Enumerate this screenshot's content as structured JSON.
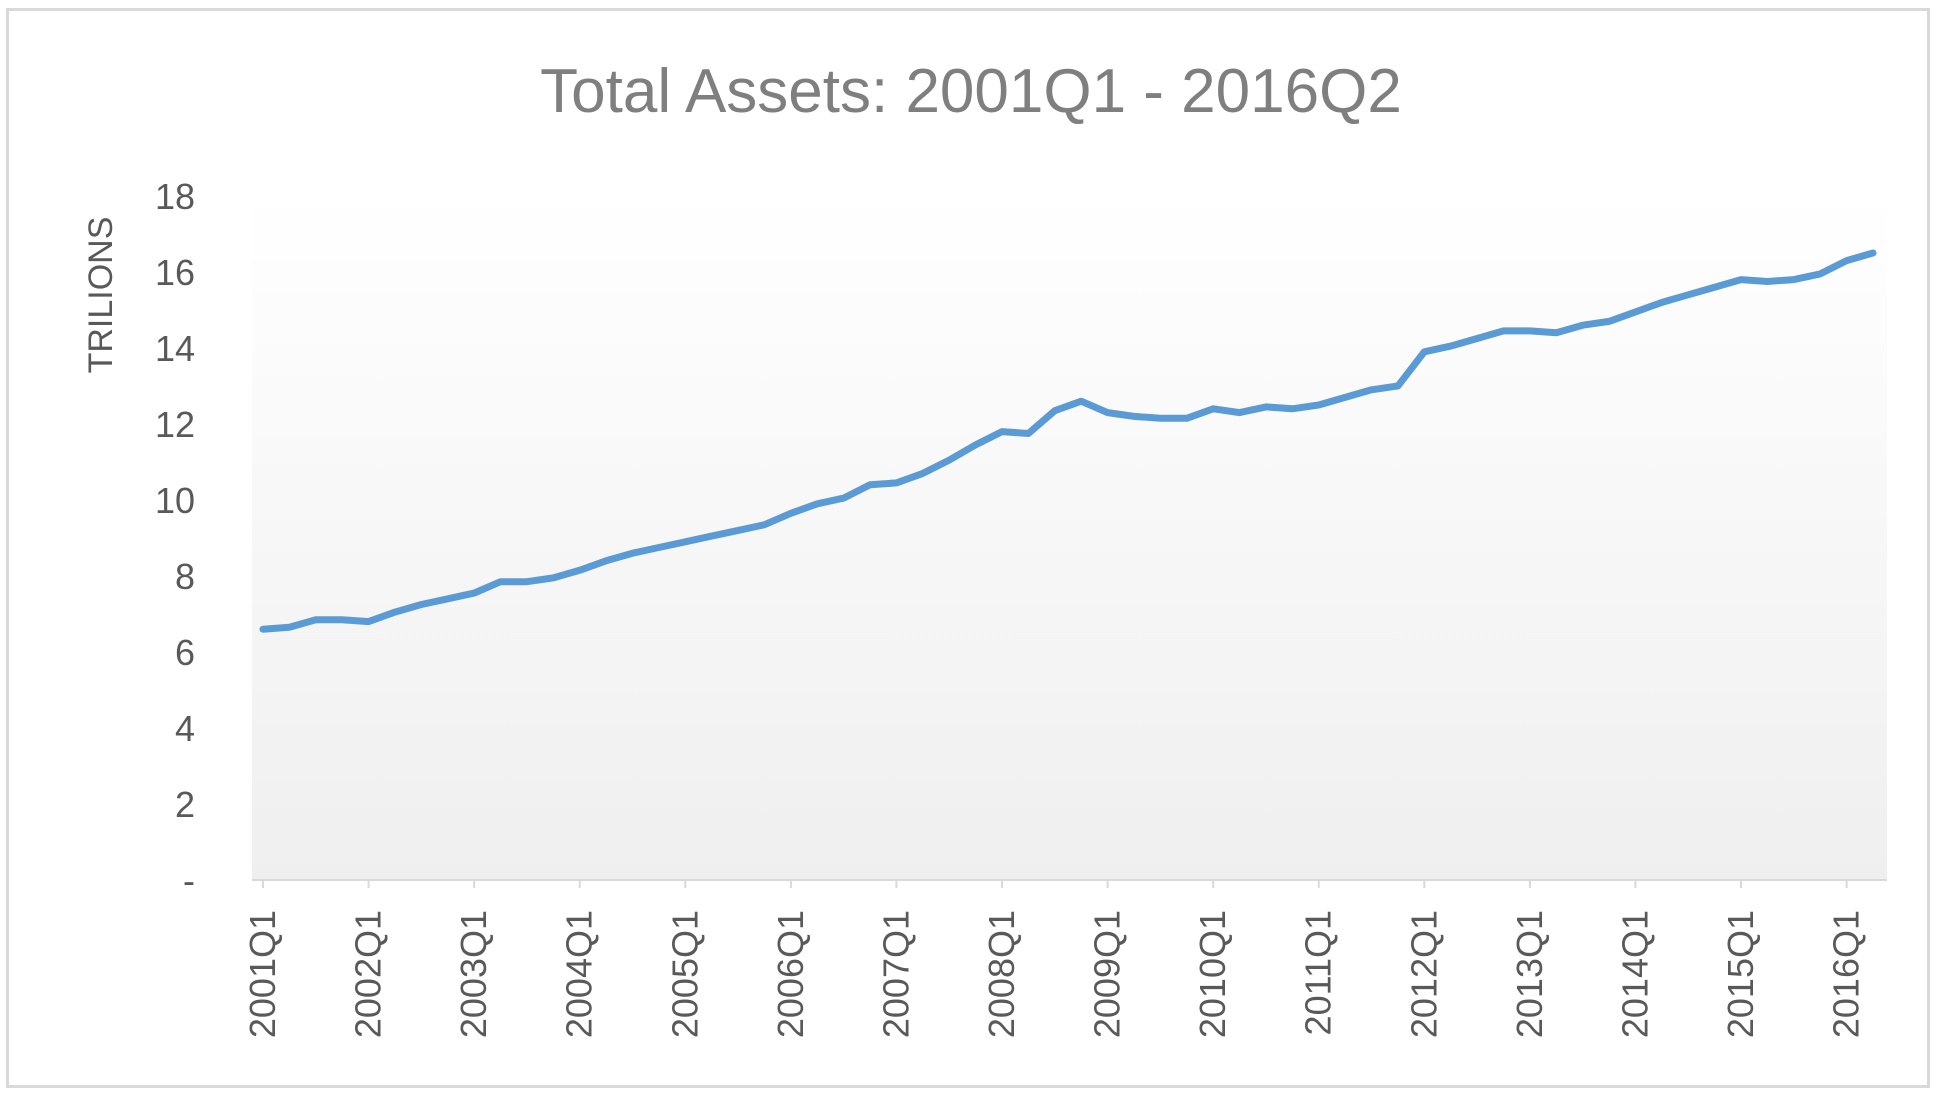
{
  "chart_data": {
    "type": "line",
    "title": "Total Assets: 2001Q1 - 2016Q2",
    "ylabel": "TRILIONS",
    "xlabel": "",
    "ylim": [
      0,
      18
    ],
    "y_ticks": [
      "-",
      "2",
      "4",
      "6",
      "8",
      "10",
      "12",
      "14",
      "16",
      "18"
    ],
    "x_tick_labels": [
      "2001Q1",
      "2002Q1",
      "2003Q1",
      "2004Q1",
      "2005Q1",
      "2006Q1",
      "2007Q1",
      "2008Q1",
      "2009Q1",
      "2010Q1",
      "2011Q1",
      "2012Q1",
      "2013Q1",
      "2014Q1",
      "2015Q1",
      "2016Q1"
    ],
    "grid": false,
    "legend": "none",
    "line_color": "#5b9bd5",
    "series": [
      {
        "values": [
          6.6,
          6.65,
          6.85,
          6.85,
          6.8,
          7.05,
          7.25,
          7.4,
          7.55,
          7.85,
          7.85,
          7.95,
          8.15,
          8.4,
          8.6,
          8.75,
          8.9,
          9.05,
          9.2,
          9.35,
          9.65,
          9.9,
          10.05,
          10.4,
          10.45,
          10.7,
          11.05,
          11.45,
          11.8,
          11.75,
          12.35,
          12.6,
          12.3,
          12.2,
          12.15,
          12.15,
          12.4,
          12.3,
          12.45,
          12.4,
          12.5,
          12.7,
          12.9,
          13.0,
          13.9,
          14.05,
          14.25,
          14.45,
          14.45,
          14.4,
          14.6,
          14.7,
          14.95,
          15.2,
          15.4,
          15.6,
          15.8,
          15.75,
          15.8,
          15.95,
          16.3,
          16.5
        ]
      }
    ]
  }
}
